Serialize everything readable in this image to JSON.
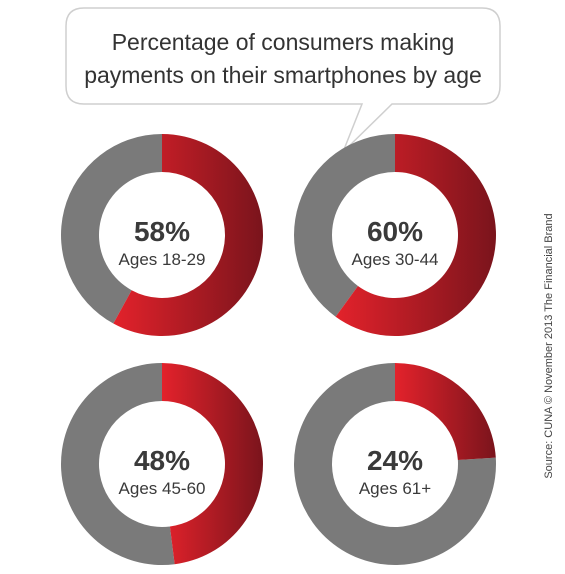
{
  "title_lines": [
    "Percentage of consumers making",
    "payments on their smartphones by age"
  ],
  "source": "Source: CUNA © November 2013 The Financial Brand",
  "colors": {
    "highlight_start": "#e3222b",
    "highlight_end": "#7a141c",
    "rest": "#7a7a7a",
    "text": "#3a3a3a",
    "bubble_stroke": "#cfcfcf"
  },
  "chart_data": {
    "type": "pie",
    "charts": [
      {
        "label": "Ages 18-29",
        "value": 58,
        "value_label": "58%"
      },
      {
        "label": "Ages 30-44",
        "value": 60,
        "value_label": "60%"
      },
      {
        "label": "Ages 45-60",
        "value": 48,
        "value_label": "48%"
      },
      {
        "label": "Ages 61+",
        "value": 24,
        "value_label": "24%"
      }
    ]
  }
}
